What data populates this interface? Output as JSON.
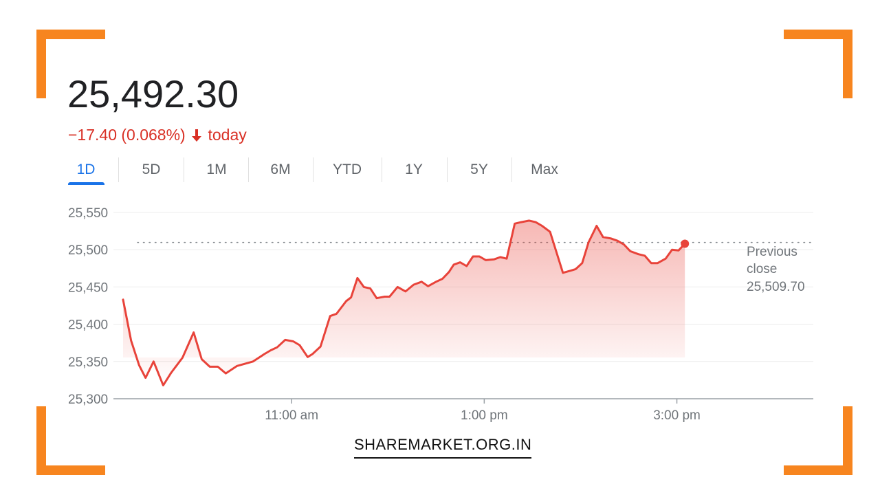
{
  "quote": {
    "price": "25,492.30",
    "change": "−17.40 (0.068%)",
    "change_suffix": "today",
    "down_color": "#d93025"
  },
  "tabs": [
    "1D",
    "5D",
    "1M",
    "6M",
    "YTD",
    "1Y",
    "5Y",
    "Max"
  ],
  "active_tab": "1D",
  "brand": "SHAREMARKET.ORG.IN",
  "chart_data": {
    "type": "area",
    "y_ticks": [
      "25,550",
      "25,500",
      "25,450",
      "25,400",
      "25,350",
      "25,300"
    ],
    "x_ticks": [
      {
        "label": "11:00 am",
        "minutes": 660
      },
      {
        "label": "1:00 pm",
        "minutes": 780
      },
      {
        "label": "3:00 pm",
        "minutes": 900
      }
    ],
    "ylim": [
      25300,
      25550
    ],
    "xlim_minutes": [
      555,
      985
    ],
    "previous_close": {
      "label_line1": "Previous",
      "label_line2": "close",
      "value": "25,509.70",
      "numeric": 25509.7
    },
    "line_color": "#e8433a",
    "series": [
      {
        "values": [
          [
            555,
            25433
          ],
          [
            560,
            25378
          ],
          [
            565,
            25345
          ],
          [
            569,
            25328
          ],
          [
            574,
            25350
          ],
          [
            580,
            25318
          ],
          [
            585,
            25335
          ],
          [
            592,
            25355
          ],
          [
            599,
            25389
          ],
          [
            604,
            25353
          ],
          [
            609,
            25343
          ],
          [
            614,
            25343
          ],
          [
            619,
            25334
          ],
          [
            626,
            25344
          ],
          [
            636,
            25350
          ],
          [
            643,
            25360
          ],
          [
            647,
            25365
          ],
          [
            651,
            25369
          ],
          [
            656,
            25379
          ],
          [
            661,
            25377
          ],
          [
            665,
            25372
          ],
          [
            670,
            25356
          ],
          [
            673,
            25360
          ],
          [
            678,
            25370
          ],
          [
            684,
            25411
          ],
          [
            688,
            25414
          ],
          [
            694,
            25431
          ],
          [
            697,
            25436
          ],
          [
            701,
            25462
          ],
          [
            705,
            25450
          ],
          [
            709,
            25448
          ],
          [
            713,
            25435
          ],
          [
            718,
            25437
          ],
          [
            721,
            25437
          ],
          [
            726,
            25450
          ],
          [
            731,
            25444
          ],
          [
            736,
            25453
          ],
          [
            741,
            25457
          ],
          [
            745,
            25451
          ],
          [
            750,
            25457
          ],
          [
            754,
            25461
          ],
          [
            758,
            25470
          ],
          [
            761,
            25480
          ],
          [
            765,
            25483
          ],
          [
            769,
            25478
          ],
          [
            773,
            25491
          ],
          [
            777,
            25491
          ],
          [
            781,
            25486
          ],
          [
            786,
            25487
          ],
          [
            790,
            25490
          ],
          [
            794,
            25488
          ],
          [
            799,
            25535
          ],
          [
            803,
            25537
          ],
          [
            808,
            25539
          ],
          [
            812,
            25537
          ],
          [
            816,
            25532
          ],
          [
            821,
            25524
          ],
          [
            829,
            25469
          ],
          [
            834,
            25472
          ],
          [
            837,
            25474
          ],
          [
            841,
            25482
          ],
          [
            845,
            25510
          ],
          [
            850,
            25532
          ],
          [
            854,
            25517
          ],
          [
            859,
            25515
          ],
          [
            863,
            25512
          ],
          [
            867,
            25507
          ],
          [
            871,
            25498
          ],
          [
            876,
            25494
          ],
          [
            880,
            25492
          ],
          [
            884,
            25482
          ],
          [
            888,
            25482
          ],
          [
            893,
            25488
          ],
          [
            897,
            25500
          ],
          [
            901,
            25499
          ],
          [
            905,
            25508
          ]
        ]
      }
    ]
  }
}
